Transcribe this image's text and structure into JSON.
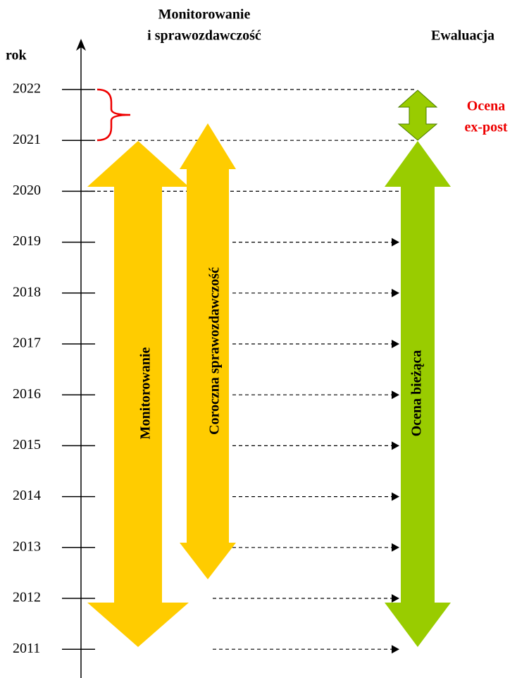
{
  "header": {
    "monitoring": [
      "Monitorowanie",
      "i sprawozdawczość"
    ],
    "evaluation": "Ewaluacja",
    "axis_label": "rok"
  },
  "years": [
    "2022",
    "2021",
    "2020",
    "2019",
    "2018",
    "2017",
    "2016",
    "2015",
    "2014",
    "2013",
    "2012",
    "2011"
  ],
  "arrows": {
    "monitoring": "Monitorowanie",
    "reporting": "Coroczna sprawozdawczość",
    "ongoing": "Ocena bieżąca",
    "expost": [
      "Ocena",
      "ex-post"
    ]
  }
}
